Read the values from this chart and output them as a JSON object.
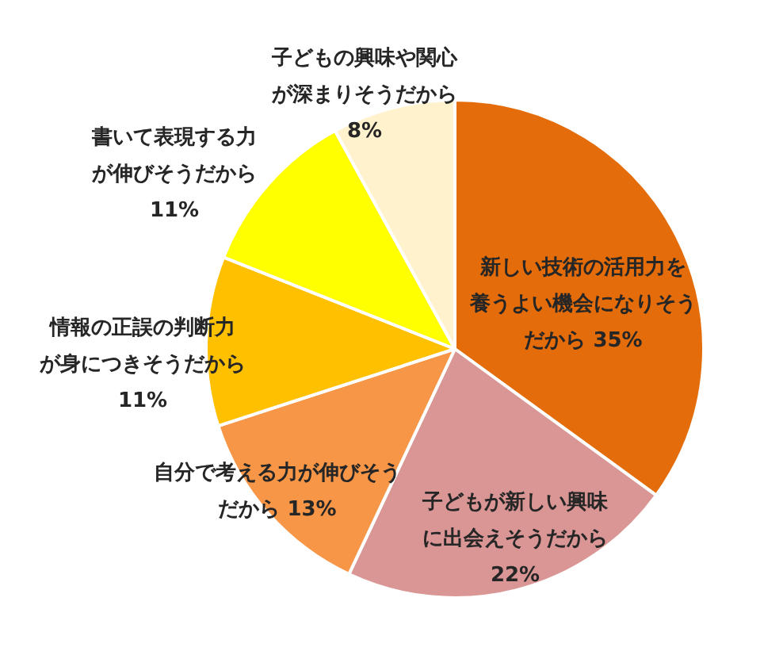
{
  "chart_data": {
    "type": "pie",
    "categories": [
      "新しい技術の活用力を養うよい機会になりそうだから",
      "子どもが新しい興味に出会えそうだから",
      "自分で考える力が伸びそうだから",
      "情報の正誤の判断力が身につきそうだから",
      "書いて表現する力が伸びそうだから",
      "子どもの興味や関心が深まりそうだから"
    ],
    "values": [
      35,
      22,
      13,
      11,
      11,
      8
    ],
    "colors": [
      "#e46c0a",
      "#d99694",
      "#f79646",
      "#ffc000",
      "#ffff00",
      "#fff2cc"
    ],
    "value_labels": [
      "35%",
      "22%",
      "13%",
      "11%",
      "11%",
      "8%"
    ]
  }
}
